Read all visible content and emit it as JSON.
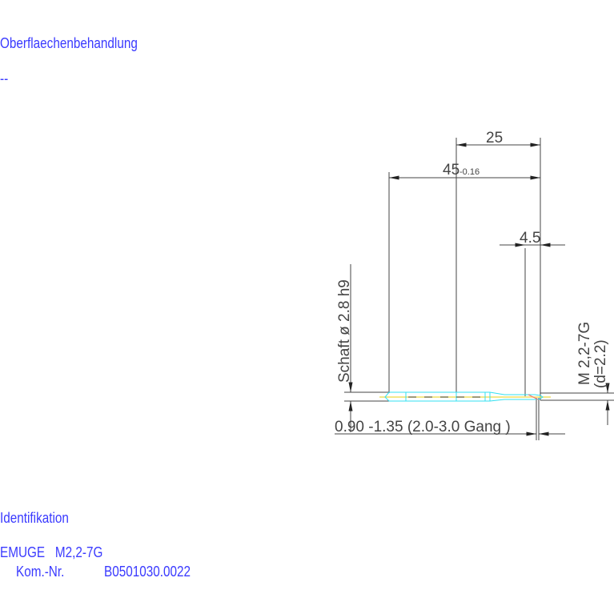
{
  "header": {
    "surface_label": "Oberflaechenbehandlung",
    "surface_value": "--"
  },
  "drawing": {
    "dim_25": "25",
    "dim_45": "45",
    "dim_45_tol": "-0.16",
    "dim_4_5": "4.5",
    "shank_label": "Schaft  ø 2.8  h9",
    "thread_label": "M 2,2-7G",
    "thread_d": "(d=2.2)",
    "chamfer_label": "0.90 -1.35 (2.0-3.0 Gang  )",
    "colors": {
      "lines": "#444444",
      "tool_outline": "#33e0f0",
      "axis": "#f0e060",
      "text_blue": "#3a3aff"
    }
  },
  "footer": {
    "ident_label": "Identifikation",
    "product": "EMUGE   M2,2-7G",
    "kom_nr_label": "Kom.-Nr.",
    "kom_nr_value": "B0501030.0022"
  }
}
